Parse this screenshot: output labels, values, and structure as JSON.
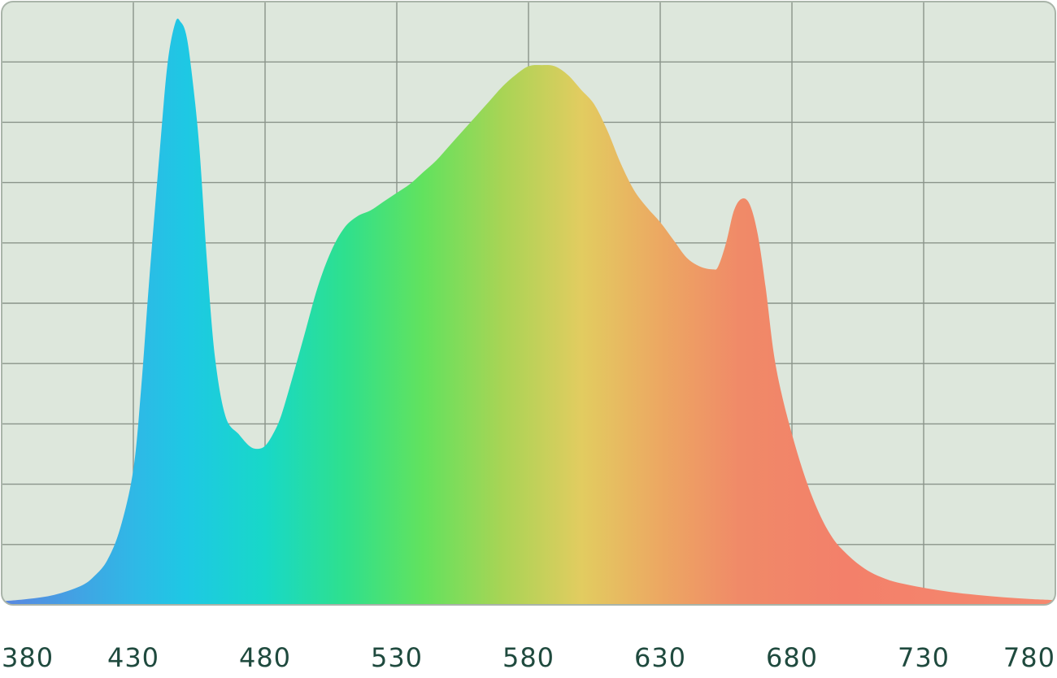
{
  "chart_data": {
    "type": "area",
    "title": "",
    "xlabel": "",
    "ylabel": "",
    "xlim": [
      380,
      780
    ],
    "ylim": [
      0,
      100
    ],
    "x_ticks": [
      380,
      430,
      480,
      530,
      580,
      630,
      680,
      730,
      780
    ],
    "x_tick_labels": [
      "380",
      "430",
      "480",
      "530",
      "580",
      "630",
      "680",
      "730",
      "780"
    ],
    "y_gridlines": 10,
    "grid": true,
    "legend": "none",
    "colors": {
      "background": "#dde7dc",
      "grid": "#8a948a",
      "border": "#a9b4a9",
      "tick_text": "#1f4a3e",
      "gradient_stops": [
        {
          "x": 380,
          "color": "#5a86e0"
        },
        {
          "x": 430,
          "color": "#2fb8e6"
        },
        {
          "x": 450,
          "color": "#1ec8e4"
        },
        {
          "x": 480,
          "color": "#18d8c8"
        },
        {
          "x": 510,
          "color": "#2ee08e"
        },
        {
          "x": 540,
          "color": "#62e25e"
        },
        {
          "x": 570,
          "color": "#a8d455"
        },
        {
          "x": 600,
          "color": "#e2cc60"
        },
        {
          "x": 630,
          "color": "#eca862"
        },
        {
          "x": 660,
          "color": "#f08a68"
        },
        {
          "x": 700,
          "color": "#f3806a"
        },
        {
          "x": 780,
          "color": "#f5886e"
        }
      ]
    },
    "series": [
      {
        "x": [
          380,
          390,
          400,
          410,
          415,
          420,
          425,
          430,
          433,
          436,
          440,
          443,
          446,
          448,
          450,
          452,
          455,
          458,
          461,
          465,
          470,
          474,
          477,
          480,
          483,
          486,
          490,
          495,
          500,
          505,
          510,
          515,
          520,
          525,
          530,
          535,
          540,
          545,
          550,
          555,
          560,
          565,
          570,
          575,
          580,
          585,
          590,
          595,
          600,
          605,
          610,
          615,
          620,
          625,
          630,
          635,
          640,
          645,
          650,
          652,
          655,
          658,
          661,
          664,
          667,
          670,
          673,
          676,
          680,
          684,
          688,
          692,
          696,
          700,
          705,
          710,
          715,
          720,
          730,
          740,
          750,
          760,
          770,
          780
        ],
        "values": [
          0.6,
          1,
          1.7,
          3.2,
          4.8,
          7.5,
          13,
          23,
          37,
          55,
          77,
          92,
          99,
          99,
          97,
          91,
          78,
          58,
          42,
          32,
          29,
          27,
          26.5,
          27,
          29,
          32,
          38,
          46,
          54,
          60,
          64,
          66,
          67,
          68.5,
          70,
          71.5,
          73.5,
          75.5,
          78,
          80.5,
          83,
          85.5,
          88,
          90,
          91.5,
          91.7,
          91.5,
          90,
          87.5,
          85,
          80.5,
          75,
          70.5,
          67.5,
          65,
          62,
          59,
          57.5,
          57,
          57.5,
          61.5,
          67,
          69,
          68,
          63,
          54,
          43,
          36,
          29,
          23,
          18,
          14,
          11,
          9,
          7,
          5.5,
          4.5,
          3.8,
          2.9,
          2.2,
          1.7,
          1.3,
          1,
          0.8
        ]
      }
    ]
  }
}
